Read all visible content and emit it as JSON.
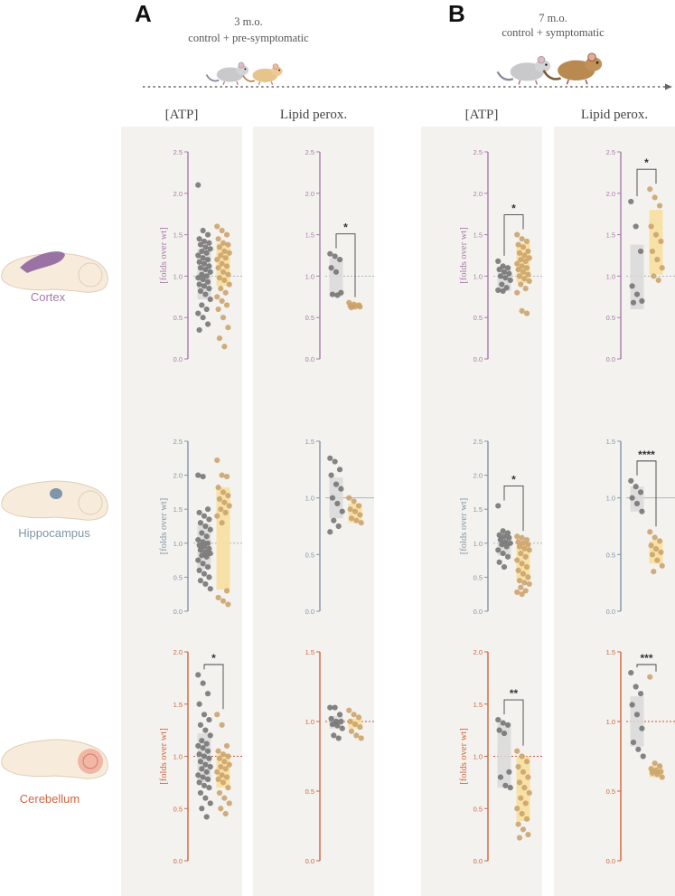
{
  "panel_a": {
    "letter": "A",
    "condition_line1": "3 m.o.",
    "condition_line2": "control + pre-symptomatic"
  },
  "panel_b": {
    "letter": "B",
    "condition_line1": "7 m.o.",
    "condition_line2": "control + symptomatic"
  },
  "column_titles": [
    "[ATP]",
    "Lipid perox.",
    "[ATP]",
    "Lipid perox."
  ],
  "regions": [
    {
      "label": "Cortex",
      "color": "#a77bab"
    },
    {
      "label": "Hippocampus",
      "color": "#7f95a9"
    },
    {
      "label": "Cerebellum",
      "color": "#d2643f"
    }
  ],
  "colors": {
    "panel_bg": "#f4f2ee",
    "control_points": "#707070",
    "disease_points": "#c9a067",
    "control_bar": "#d9d9d9",
    "disease_bar": "#f8df9f"
  },
  "icons": [
    "timeline-arrow-icon",
    "mouse-icon",
    "brain-icon"
  ],
  "chart_data": [
    {
      "type": "scatter",
      "region": "Cortex",
      "age": "3 m.o.",
      "measure": "[ATP]",
      "ylabel": "[folds over wt]",
      "ylim": [
        0,
        2.5
      ],
      "ticks": [
        "0.0",
        "0.5",
        "1.0",
        "1.5",
        "2.0",
        "2.5"
      ],
      "sig": "",
      "control": {
        "bar": [
          0.72,
          1.33
        ],
        "values": [
          2.1,
          1.55,
          1.5,
          1.45,
          1.42,
          1.4,
          1.38,
          1.35,
          1.33,
          1.3,
          1.28,
          1.25,
          1.22,
          1.2,
          1.17,
          1.15,
          1.12,
          1.1,
          1.08,
          1.05,
          1.02,
          1.0,
          0.98,
          0.96,
          0.93,
          0.9,
          0.88,
          0.85,
          0.82,
          0.78,
          0.72,
          0.65,
          0.6,
          0.55,
          0.5,
          0.42,
          0.35
        ]
      },
      "disease": {
        "bar": [
          0.88,
          1.4
        ],
        "values": [
          1.6,
          1.55,
          1.5,
          1.45,
          1.4,
          1.38,
          1.35,
          1.3,
          1.28,
          1.25,
          1.22,
          1.2,
          1.15,
          1.12,
          1.1,
          1.05,
          1.02,
          0.98,
          0.95,
          0.9,
          0.85,
          0.8,
          0.75,
          0.7,
          0.65,
          0.6,
          0.5,
          0.38,
          0.25,
          0.15
        ]
      }
    },
    {
      "type": "scatter",
      "region": "Cortex",
      "age": "3 m.o.",
      "measure": "Lipid perox.",
      "ylabel": "",
      "ylim": [
        0,
        2.5
      ],
      "ticks": [
        "0.0",
        "0.5",
        "1.0",
        "1.5",
        "2.0",
        "2.5"
      ],
      "sig": "*",
      "control": {
        "bar": [
          0.75,
          1.22
        ],
        "values": [
          1.27,
          1.24,
          1.2,
          1.1,
          1.05,
          0.8,
          0.78,
          0.77
        ]
      },
      "disease": {
        "bar": [
          0.62,
          0.68
        ],
        "values": [
          0.68,
          0.66,
          0.65,
          0.64,
          0.63,
          0.63,
          0.62
        ]
      }
    },
    {
      "type": "scatter",
      "region": "Cortex",
      "age": "7 m.o.",
      "measure": "[ATP]",
      "ylabel": "[folds over wt]",
      "ylim": [
        0,
        2.5
      ],
      "ticks": [
        "0.0",
        "0.5",
        "1.0",
        "1.5",
        "2.0",
        "2.5"
      ],
      "sig": "*",
      "control": {
        "bar": [
          0.82,
          1.12
        ],
        "values": [
          1.18,
          1.12,
          1.1,
          1.08,
          1.05,
          1.03,
          1.0,
          0.98,
          0.95,
          0.9,
          0.86,
          0.83,
          0.82
        ]
      },
      "disease": {
        "bar": [
          0.92,
          1.4
        ],
        "values": [
          1.5,
          1.45,
          1.42,
          1.38,
          1.35,
          1.3,
          1.28,
          1.25,
          1.22,
          1.2,
          1.18,
          1.15,
          1.12,
          1.1,
          1.08,
          1.05,
          1.02,
          1.0,
          0.97,
          0.94,
          0.9,
          0.85,
          0.8,
          0.58,
          0.55
        ]
      }
    },
    {
      "type": "scatter",
      "region": "Cortex",
      "age": "7 m.o.",
      "measure": "Lipid perox.",
      "ylabel": "",
      "ylim": [
        0,
        2.5
      ],
      "ticks": [
        "0.0",
        "0.5",
        "1.0",
        "1.5",
        "2.0",
        "2.5"
      ],
      "sig": "*",
      "control": {
        "bar": [
          0.6,
          1.38
        ],
        "values": [
          1.9,
          1.6,
          1.3,
          0.88,
          0.78,
          0.7,
          0.68
        ]
      },
      "disease": {
        "bar": [
          1.02,
          1.8
        ],
        "values": [
          2.05,
          1.95,
          1.85,
          1.6,
          1.5,
          1.42,
          1.3,
          1.2,
          1.1,
          1.0,
          0.95
        ]
      }
    },
    {
      "type": "scatter",
      "region": "Hippocampus",
      "age": "3 m.o.",
      "measure": "[ATP]",
      "ylabel": "[folds over wt]",
      "ylim": [
        0,
        2.5
      ],
      "ticks": [
        "0.0",
        "0.5",
        "1.0",
        "1.5",
        "2.0",
        "2.5"
      ],
      "sig": "",
      "control": {
        "bar": [
          0.62,
          1.28
        ],
        "values": [
          2.0,
          1.98,
          1.5,
          1.45,
          1.4,
          1.35,
          1.3,
          1.25,
          1.2,
          1.15,
          1.1,
          1.05,
          1.02,
          1.0,
          0.97,
          0.95,
          0.92,
          0.9,
          0.87,
          0.85,
          0.82,
          0.8,
          0.75,
          0.7,
          0.65,
          0.6,
          0.55,
          0.5,
          0.45,
          0.4,
          0.33
        ]
      },
      "disease": {
        "bar": [
          0.32,
          1.82
        ],
        "values": [
          2.22,
          2.0,
          1.98,
          1.82,
          1.75,
          1.7,
          1.65,
          1.6,
          1.55,
          1.5,
          1.45,
          1.4,
          1.3,
          0.3,
          0.2,
          0.15,
          0.1
        ]
      }
    },
    {
      "type": "scatter",
      "region": "Hippocampus",
      "age": "3 m.o.",
      "measure": "Lipid perox.",
      "ylabel": "",
      "ylim": [
        0,
        1.5
      ],
      "ticks": [
        "0.0",
        "0.5",
        "1.0",
        "1.5"
      ],
      "sig": "",
      "control": {
        "bar": [
          0.82,
          1.18
        ],
        "values": [
          1.35,
          1.32,
          1.25,
          1.2,
          1.12,
          1.08,
          1.0,
          0.95,
          0.88,
          0.8,
          0.75,
          0.7
        ]
      },
      "disease": {
        "bar": [
          0.78,
          0.95
        ],
        "values": [
          1.0,
          0.97,
          0.93,
          0.9,
          0.88,
          0.85,
          0.82,
          0.8,
          0.78
        ]
      }
    },
    {
      "type": "scatter",
      "region": "Hippocampus",
      "age": "7 m.o.",
      "measure": "[ATP]",
      "ylabel": "[folds over wt]",
      "ylim": [
        0,
        2.5
      ],
      "ticks": [
        "0.0",
        "0.5",
        "1.0",
        "1.5",
        "2.0",
        "2.5"
      ],
      "sig": "*",
      "control": {
        "bar": [
          0.82,
          1.1
        ],
        "values": [
          1.55,
          1.18,
          1.15,
          1.12,
          1.1,
          1.08,
          1.05,
          1.02,
          1.0,
          0.98,
          0.95,
          0.9,
          0.85,
          0.8,
          0.72,
          0.65
        ]
      },
      "disease": {
        "bar": [
          0.45,
          1.0
        ],
        "values": [
          1.1,
          1.08,
          1.05,
          1.02,
          1.0,
          0.98,
          0.95,
          0.92,
          0.9,
          0.85,
          0.8,
          0.75,
          0.7,
          0.65,
          0.6,
          0.55,
          0.5,
          0.45,
          0.42,
          0.4,
          0.35,
          0.3,
          0.28,
          0.25
        ]
      }
    },
    {
      "type": "scatter",
      "region": "Hippocampus",
      "age": "7 m.o.",
      "measure": "Lipid perox.",
      "ylabel": "",
      "ylim": [
        0,
        1.5
      ],
      "ticks": [
        "0.0",
        "0.5",
        "1.0",
        "1.5"
      ],
      "sig": "****",
      "control": {
        "bar": [
          0.88,
          1.1
        ],
        "values": [
          1.15,
          1.1,
          1.05,
          1.0,
          0.95,
          0.88
        ]
      },
      "disease": {
        "bar": [
          0.42,
          0.62
        ],
        "values": [
          0.7,
          0.65,
          0.62,
          0.58,
          0.55,
          0.52,
          0.5,
          0.45,
          0.4,
          0.35
        ]
      }
    },
    {
      "type": "scatter",
      "region": "Cerebellum",
      "age": "3 m.o.",
      "measure": "[ATP]",
      "ylabel": "[folds over wt]",
      "ylim": [
        0,
        2.0
      ],
      "ticks": [
        "0.0",
        "0.5",
        "1.0",
        "1.5",
        "2.0"
      ],
      "sig": "*",
      "control": {
        "bar": [
          0.75,
          1.22
        ],
        "values": [
          1.78,
          1.7,
          1.6,
          1.5,
          1.4,
          1.35,
          1.3,
          1.25,
          1.2,
          1.15,
          1.12,
          1.1,
          1.08,
          1.05,
          1.02,
          1.0,
          0.98,
          0.95,
          0.92,
          0.9,
          0.88,
          0.85,
          0.82,
          0.8,
          0.78,
          0.75,
          0.72,
          0.7,
          0.65,
          0.6,
          0.55,
          0.5,
          0.42
        ]
      },
      "disease": {
        "bar": [
          0.7,
          1.02
        ],
        "values": [
          1.4,
          1.3,
          1.1,
          1.05,
          1.02,
          1.0,
          0.98,
          0.95,
          0.92,
          0.9,
          0.88,
          0.85,
          0.82,
          0.8,
          0.78,
          0.75,
          0.7,
          0.65,
          0.6,
          0.55,
          0.5,
          0.45
        ]
      }
    },
    {
      "type": "scatter",
      "region": "Cerebellum",
      "age": "3 m.o.",
      "measure": "Lipid perox.",
      "ylabel": "",
      "ylim": [
        0,
        1.5
      ],
      "ticks": [
        "0.0",
        "0.5",
        "1.0",
        "1.5"
      ],
      "sig": "",
      "control": {
        "bar": [
          0.95,
          1.04
        ],
        "values": [
          1.1,
          1.1,
          1.05,
          1.02,
          1.0,
          1.0,
          0.98,
          0.97,
          0.95,
          0.9,
          0.88
        ]
      },
      "disease": {
        "bar": [
          0.95,
          1.02
        ],
        "values": [
          1.08,
          1.05,
          1.03,
          1.0,
          0.98,
          0.96,
          0.93,
          0.9,
          0.88
        ]
      }
    },
    {
      "type": "scatter",
      "region": "Cerebellum",
      "age": "7 m.o.",
      "measure": "[ATP]",
      "ylabel": "[folds over wt]",
      "ylim": [
        0,
        2.0
      ],
      "ticks": [
        "0.0",
        "0.5",
        "1.0",
        "1.5",
        "2.0"
      ],
      "sig": "**",
      "control": {
        "bar": [
          0.7,
          1.32
        ],
        "values": [
          1.35,
          1.32,
          1.3,
          1.25,
          1.22,
          0.85,
          0.8,
          0.72,
          0.7
        ]
      },
      "disease": {
        "bar": [
          0.38,
          1.0
        ],
        "values": [
          1.05,
          1.0,
          0.95,
          0.9,
          0.85,
          0.8,
          0.75,
          0.7,
          0.65,
          0.6,
          0.55,
          0.5,
          0.45,
          0.4,
          0.35,
          0.3,
          0.25,
          0.22
        ]
      }
    },
    {
      "type": "scatter",
      "region": "Cerebellum",
      "age": "7 m.o.",
      "measure": "Lipid perox.",
      "ylabel": "",
      "ylim": [
        0,
        1.5
      ],
      "ticks": [
        "0.0",
        "0.5",
        "1.0",
        "1.5"
      ],
      "sig": "***",
      "control": {
        "bar": [
          0.82,
          1.18
        ],
        "values": [
          1.35,
          1.25,
          1.2,
          1.12,
          1.05,
          0.95,
          0.85,
          0.8,
          0.75
        ]
      },
      "disease": {
        "bar": [
          0.6,
          0.68
        ],
        "values": [
          1.32,
          0.7,
          0.68,
          0.66,
          0.65,
          0.64,
          0.63,
          0.62,
          0.6
        ]
      }
    }
  ]
}
